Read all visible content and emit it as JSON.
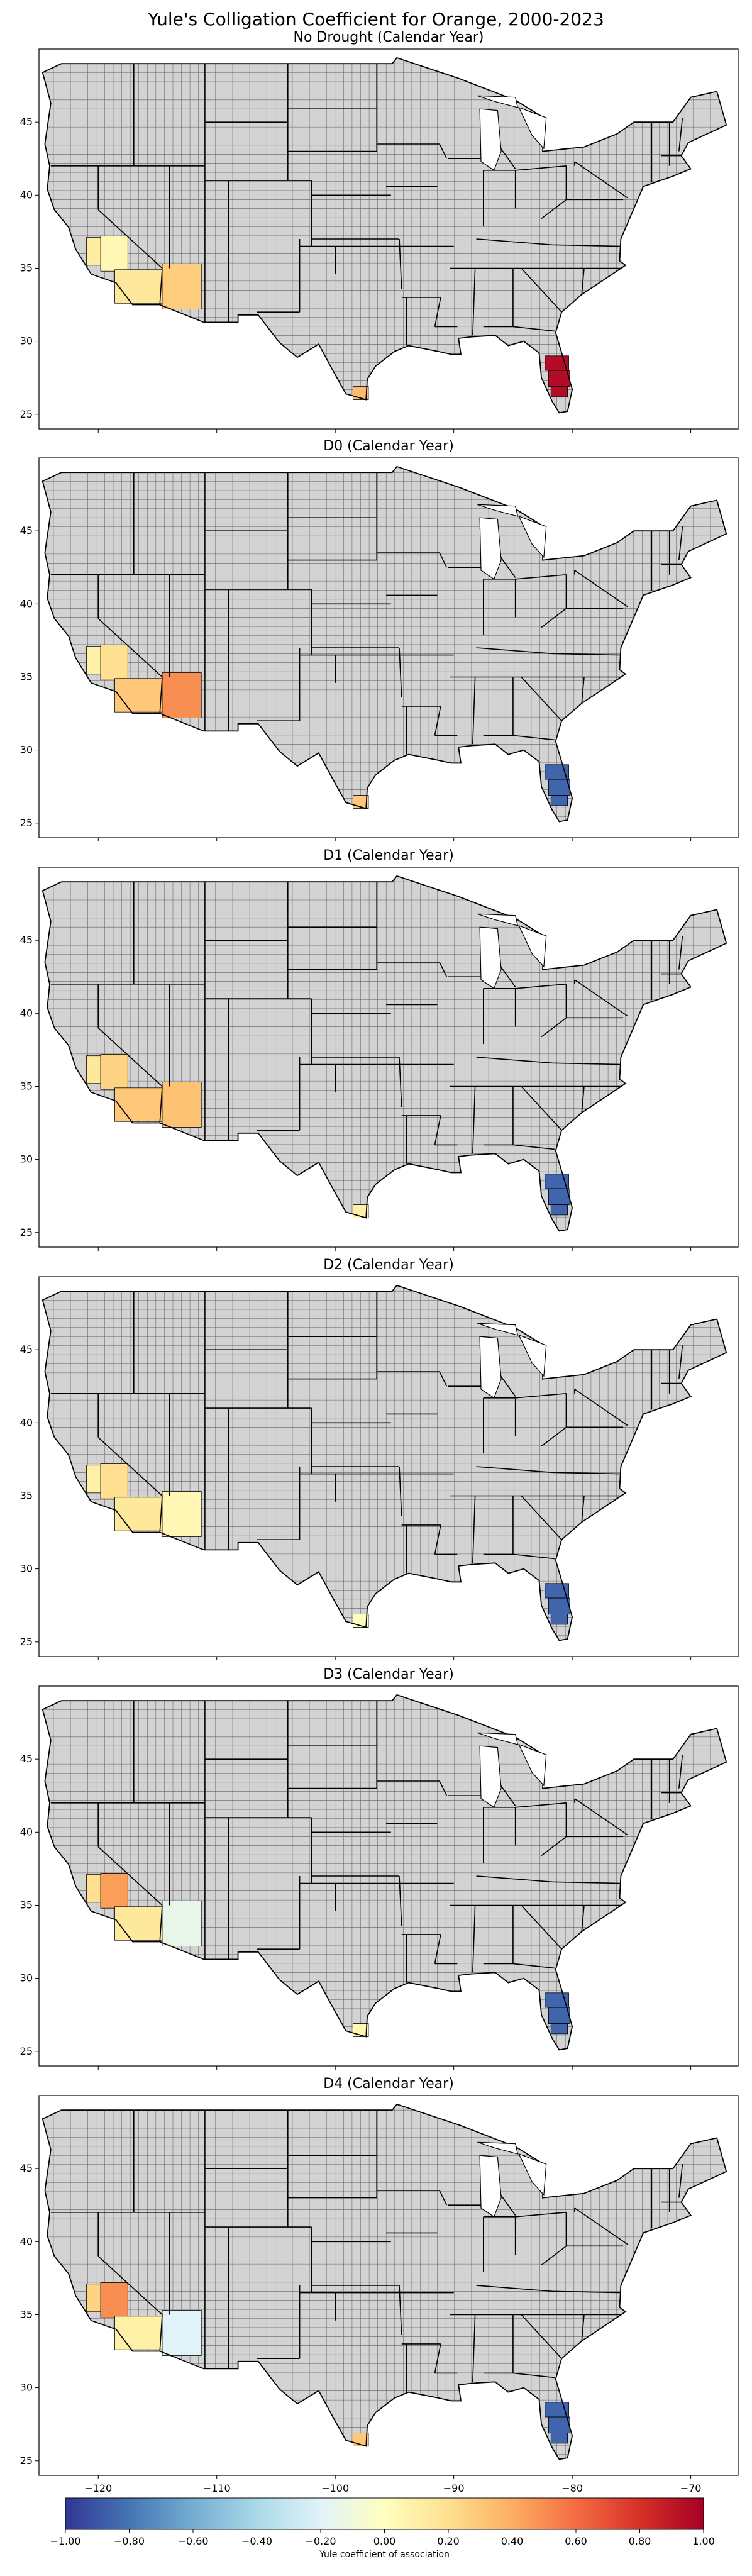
{
  "chart_data": {
    "type": "map",
    "title": "Yule's Colligation Coefficient for Orange, 2000-2023",
    "panels": [
      {
        "title": "No Drought (Calendar Year)",
        "regions": [
          {
            "region": "California Central Coast counties",
            "value": 0.12
          },
          {
            "region": "California San Joaquin Valley counties",
            "value": 0.05
          },
          {
            "region": "California Southern counties",
            "value": 0.15
          },
          {
            "region": "Arizona Maricopa County",
            "value": 0.28
          },
          {
            "region": "Texas Lower Rio Grande counties",
            "value": 0.35
          },
          {
            "region": "Florida Central counties",
            "value": 0.95
          }
        ]
      },
      {
        "title": "D0 (Calendar Year)",
        "regions": [
          {
            "region": "California Central Coast counties",
            "value": 0.1
          },
          {
            "region": "California San Joaquin Valley counties",
            "value": 0.2
          },
          {
            "region": "California Southern counties",
            "value": 0.3
          },
          {
            "region": "Arizona Maricopa County",
            "value": 0.5
          },
          {
            "region": "Texas Lower Rio Grande counties",
            "value": 0.3
          },
          {
            "region": "Florida Central counties",
            "value": -0.85
          }
        ]
      },
      {
        "title": "D1 (Calendar Year)",
        "regions": [
          {
            "region": "California Central Coast counties",
            "value": 0.15
          },
          {
            "region": "California San Joaquin Valley counties",
            "value": 0.25
          },
          {
            "region": "California Southern counties",
            "value": 0.3
          },
          {
            "region": "Arizona Maricopa County",
            "value": 0.32
          },
          {
            "region": "Texas Lower Rio Grande counties",
            "value": 0.1
          },
          {
            "region": "Florida Central counties",
            "value": -0.85
          }
        ]
      },
      {
        "title": "D2 (Calendar Year)",
        "regions": [
          {
            "region": "California Central Coast counties",
            "value": 0.1
          },
          {
            "region": "California San Joaquin Valley counties",
            "value": 0.2
          },
          {
            "region": "California Southern counties",
            "value": 0.15
          },
          {
            "region": "Arizona Maricopa County",
            "value": 0.05
          },
          {
            "region": "Texas Lower Rio Grande counties",
            "value": 0.0
          },
          {
            "region": "Florida Central counties",
            "value": -0.85
          }
        ]
      },
      {
        "title": "D3 (Calendar Year)",
        "regions": [
          {
            "region": "California Central Coast counties",
            "value": 0.2
          },
          {
            "region": "California San Joaquin Valley counties",
            "value": 0.45
          },
          {
            "region": "California Southern counties",
            "value": 0.15
          },
          {
            "region": "Arizona Maricopa County",
            "value": -0.15
          },
          {
            "region": "Texas Lower Rio Grande counties",
            "value": 0.05
          },
          {
            "region": "Florida Central counties",
            "value": -0.85
          }
        ]
      },
      {
        "title": "D4 (Calendar Year)",
        "regions": [
          {
            "region": "California Central Coast counties",
            "value": 0.25
          },
          {
            "region": "California San Joaquin Valley counties",
            "value": 0.5
          },
          {
            "region": "California Southern counties",
            "value": 0.1
          },
          {
            "region": "Arizona Maricopa County",
            "value": -0.2
          },
          {
            "region": "Texas Lower Rio Grande counties",
            "value": 0.3
          },
          {
            "region": "Florida Central counties",
            "value": -0.85
          }
        ]
      }
    ],
    "x_ticks": [
      "−120",
      "−110",
      "−100",
      "−90",
      "−80",
      "−70"
    ],
    "y_ticks": [
      "25",
      "30",
      "35",
      "40",
      "45"
    ],
    "xlim": [
      -125,
      -66
    ],
    "ylim": [
      24,
      50
    ],
    "colorbar": {
      "colormap": "RdYlBu_r",
      "range": [
        -1,
        1
      ],
      "ticks": [
        "−1.00",
        "−0.80",
        "−0.60",
        "−0.40",
        "−0.20",
        "0.00",
        "0.20",
        "0.40",
        "0.60",
        "0.80",
        "1.00"
      ],
      "label": "Yule coefficient of association"
    },
    "colors": {
      "no_data": "#d3d3d3",
      "county_border": "#000000"
    }
  }
}
